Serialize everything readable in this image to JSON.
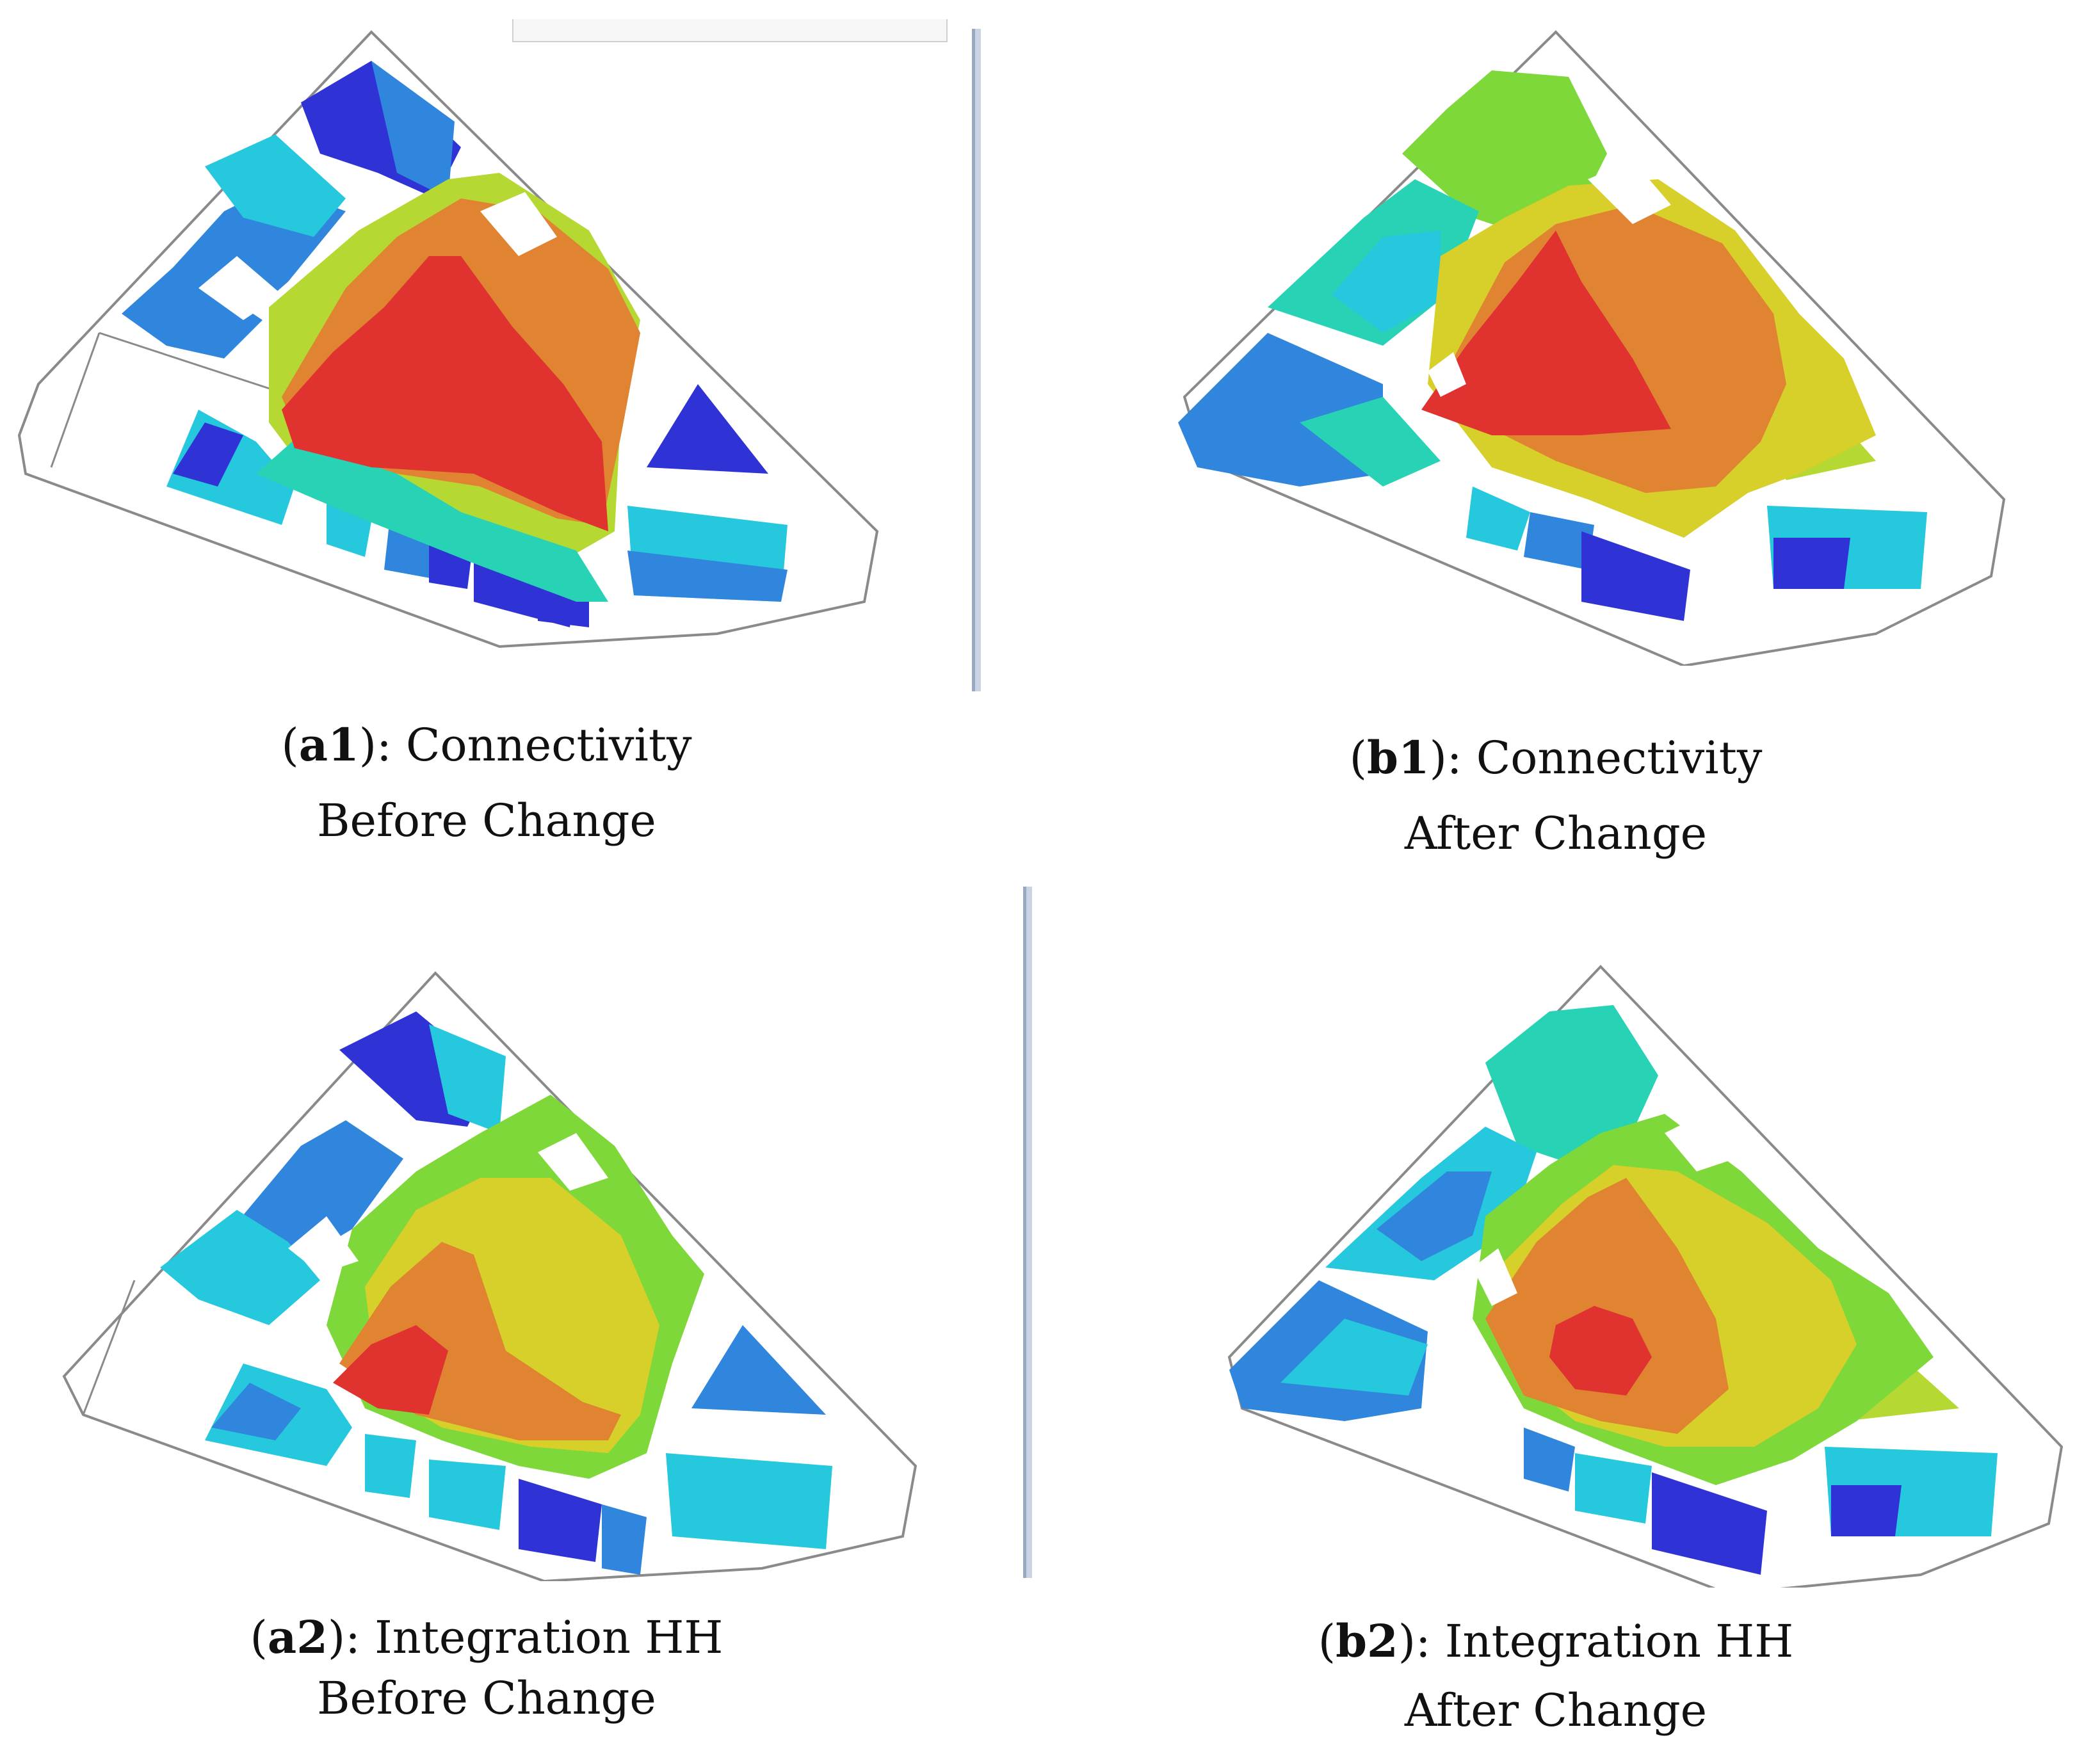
{
  "figure": {
    "panels": [
      {
        "id": "a1",
        "label": "a1",
        "metric": "): Connectivity",
        "state": "Before Change"
      },
      {
        "id": "b1",
        "label": "b1",
        "metric": "): Connectivity",
        "state": "After Change"
      },
      {
        "id": "a2",
        "label": "a2",
        "metric": "): Integration HH",
        "state": "Before Change"
      },
      {
        "id": "b2",
        "label": "b2",
        "metric": "): Integration HH",
        "state": "After Change"
      }
    ],
    "colors": {
      "red": "#e0332f",
      "orange": "#e08432",
      "yellow": "#d7cf2a",
      "yellowgreen": "#b6d833",
      "green": "#7fd83a",
      "teal": "#27d3b4",
      "cyan": "#26c8dd",
      "blue": "#2f86dc",
      "darkblue": "#2f33d6",
      "outline": "#8a8a8a"
    }
  }
}
